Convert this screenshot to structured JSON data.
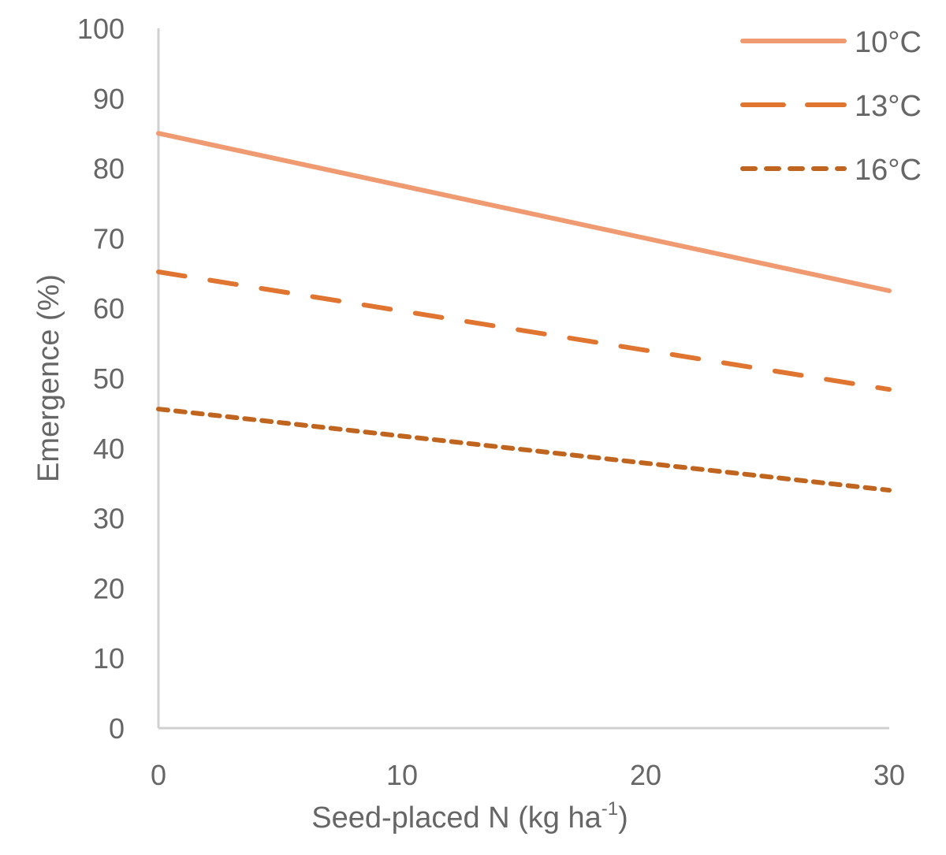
{
  "chart_data": {
    "type": "line",
    "title": "",
    "xlabel": "Seed-placed N (kg ha",
    "xlabel_sup": "-1",
    "xlabel_end": ")",
    "ylabel": "Emergence (%)",
    "xlim": [
      0,
      30
    ],
    "ylim": [
      0,
      100
    ],
    "xticks": [
      0,
      10,
      20,
      30
    ],
    "yticks": [
      0,
      10,
      20,
      30,
      40,
      50,
      60,
      70,
      80,
      90,
      100
    ],
    "grid": false,
    "legend_position": "top-right",
    "series": [
      {
        "name": "10°C",
        "style": "solid",
        "color": "#F09A72",
        "x": [
          0,
          30
        ],
        "y": [
          85.0,
          62.5
        ]
      },
      {
        "name": "13°C",
        "style": "dashed",
        "color": "#DF7530",
        "x": [
          0,
          30
        ],
        "y": [
          65.2,
          48.4
        ]
      },
      {
        "name": "16°C",
        "style": "dotted",
        "color": "#C0651F",
        "x": [
          0,
          30
        ],
        "y": [
          45.6,
          34.0
        ]
      }
    ]
  }
}
